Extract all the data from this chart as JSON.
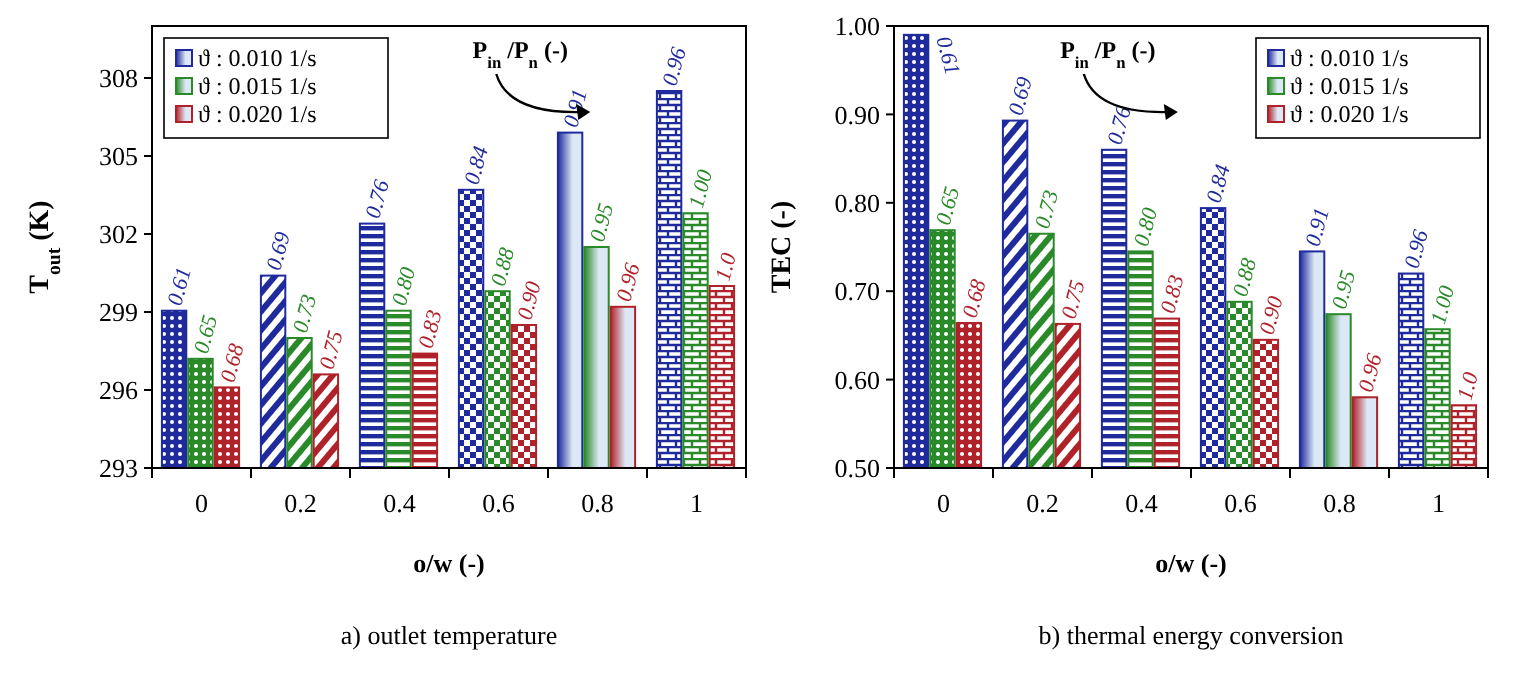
{
  "chart_data": [
    {
      "type": "bar",
      "title": "a) outlet temperature",
      "xlabel": "o/w (-)",
      "ylabel": "T$_{out}$ (K)",
      "categories": [
        "0",
        "0.2",
        "0.4",
        "0.6",
        "0.8",
        "1"
      ],
      "ylim": [
        293,
        310
      ],
      "yticks": [
        293,
        296,
        299,
        302,
        305,
        308
      ],
      "legend": "top left",
      "grid": false,
      "annotations": [
        "P$_{in}$ /P$_{n}$ (-)",
        "0.61",
        "0.69",
        "0.76",
        "0.84",
        "0.91",
        "0.96",
        "0.65",
        "0.73",
        "0.80",
        "0.88",
        "0.95",
        "1.00",
        "0.68",
        "0.75",
        "0.83",
        "0.90",
        "0.96",
        "1.0"
      ],
      "series": [
        {
          "name": "ϑ : 0.010 1/s",
          "color": "#1f2b9c",
          "values": [
            299.05,
            300.4,
            302.4,
            303.7,
            305.9,
            307.5
          ]
        },
        {
          "name": "ϑ : 0.015 1/s",
          "color": "#2a8a2a",
          "values": [
            297.2,
            298.0,
            299.05,
            299.8,
            301.5,
            302.8
          ]
        },
        {
          "name": "ϑ : 0.020 1/s",
          "color": "#b0222a",
          "values": [
            296.1,
            296.6,
            297.4,
            298.5,
            299.2,
            300.0
          ]
        }
      ]
    },
    {
      "type": "bar",
      "title": "b) thermal energy conversion",
      "xlabel": "o/w (-)",
      "ylabel": "TEC (-)",
      "categories": [
        "0",
        "0.2",
        "0.4",
        "0.6",
        "0.8",
        "1"
      ],
      "ylim": [
        0.5,
        1.0
      ],
      "yticks": [
        {
          "value": 0.5,
          "label": "0.50"
        },
        {
          "value": 0.6,
          "label": "0.60"
        },
        {
          "value": 0.7,
          "label": "0.70"
        },
        {
          "value": 0.8,
          "label": "0.80"
        },
        {
          "value": 0.9,
          "label": "0.90"
        },
        {
          "value": 1.0,
          "label": "1.00"
        }
      ],
      "legend": "top right",
      "grid": false,
      "annotations": [
        "P$_{in}$ /P$_{n}$ (-)",
        "0.61",
        "0.69",
        "0.76",
        "0.84",
        "0.91",
        "0.96",
        "0.65",
        "0.73",
        "0.80",
        "0.88",
        "0.95",
        "1.00",
        "0.68",
        "0.75",
        "0.83",
        "0.90",
        "0.96",
        "1.0"
      ],
      "series": [
        {
          "name": "ϑ : 0.010 1/s",
          "color": "#1f2b9c",
          "values": [
            0.99,
            0.893,
            0.86,
            0.794,
            0.745,
            0.72
          ]
        },
        {
          "name": "ϑ : 0.015 1/s",
          "color": "#2a8a2a",
          "values": [
            0.769,
            0.765,
            0.745,
            0.688,
            0.674,
            0.657
          ]
        },
        {
          "name": "ϑ : 0.020 1/s",
          "color": "#b0222a",
          "values": [
            0.664,
            0.663,
            0.669,
            0.645,
            0.58,
            0.571
          ]
        }
      ]
    }
  ]
}
